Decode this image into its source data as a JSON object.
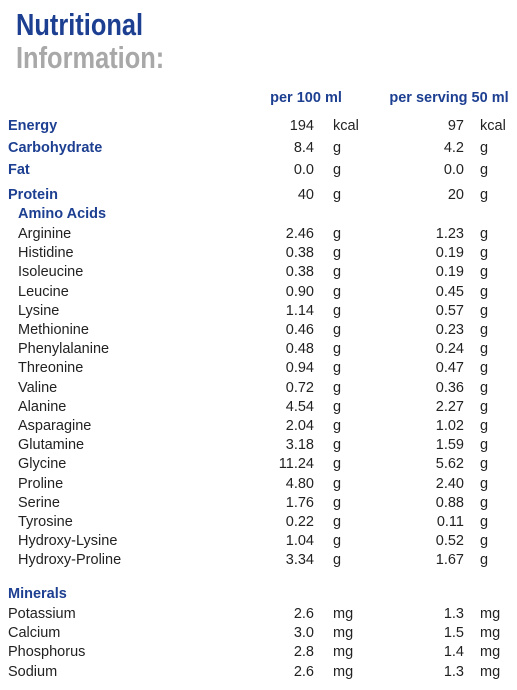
{
  "header": {
    "title_line1": "Nutritional",
    "title_line2": "Information:"
  },
  "table": {
    "columns": [
      "per 100 ml",
      "per serving 50 ml"
    ],
    "main_rows": [
      [
        "Energy",
        "194",
        "kcal",
        "97",
        "kcal"
      ],
      [
        "Carbohydrate",
        "8.4",
        "g",
        "4.2",
        "g"
      ],
      [
        "Fat",
        "0.0",
        "g",
        "0.0",
        "g"
      ],
      [
        "Protein",
        "40",
        "g",
        "20",
        "g"
      ]
    ],
    "amino_acids": {
      "title": "Amino Acids",
      "rows": [
        [
          "Arginine",
          "2.46",
          "g",
          "1.23",
          "g"
        ],
        [
          "Histidine",
          "0.38",
          "g",
          "0.19",
          "g"
        ],
        [
          "Isoleucine",
          "0.38",
          "g",
          "0.19",
          "g"
        ],
        [
          "Leucine",
          "0.90",
          "g",
          "0.45",
          "g"
        ],
        [
          "Lysine",
          "1.14",
          "g",
          "0.57",
          "g"
        ],
        [
          "Methionine",
          "0.46",
          "g",
          "0.23",
          "g"
        ],
        [
          "Phenylalanine",
          "0.48",
          "g",
          "0.24",
          "g"
        ],
        [
          "Threonine",
          "0.94",
          "g",
          "0.47",
          "g"
        ],
        [
          "Valine",
          "0.72",
          "g",
          "0.36",
          "g"
        ],
        [
          "Alanine",
          "4.54",
          "g",
          "2.27",
          "g"
        ],
        [
          "Asparagine",
          "2.04",
          "g",
          "1.02",
          "g"
        ],
        [
          "Glutamine",
          "3.18",
          "g",
          "1.59",
          "g"
        ],
        [
          "Glycine",
          "11.24",
          "g",
          "5.62",
          "g"
        ],
        [
          "Proline",
          "4.80",
          "g",
          "2.40",
          "g"
        ],
        [
          "Serine",
          "1.76",
          "g",
          "0.88",
          "g"
        ],
        [
          "Tyrosine",
          "0.22",
          "g",
          "0.11",
          "g"
        ],
        [
          "Hydroxy-Lysine",
          "1.04",
          "g",
          "0.52",
          "g"
        ],
        [
          "Hydroxy-Proline",
          "3.34",
          "g",
          "1.67",
          "g"
        ]
      ]
    },
    "minerals": {
      "title": "Minerals",
      "rows": [
        [
          "Potassium",
          "2.6",
          "mg",
          "1.3",
          "mg"
        ],
        [
          "Calcium",
          "3.0",
          "mg",
          "1.5",
          "mg"
        ],
        [
          "Phosphorus",
          "2.8",
          "mg",
          "1.4",
          "mg"
        ],
        [
          "Sodium",
          "2.6",
          "mg",
          "1.3",
          "mg"
        ]
      ]
    }
  }
}
